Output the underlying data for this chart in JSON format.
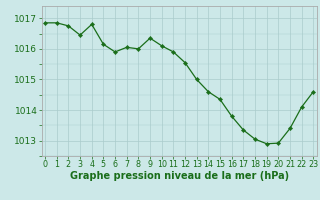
{
  "x": [
    0,
    1,
    2,
    3,
    4,
    5,
    6,
    7,
    8,
    9,
    10,
    11,
    12,
    13,
    14,
    15,
    16,
    17,
    18,
    19,
    20,
    21,
    22,
    23
  ],
  "y": [
    1016.85,
    1016.85,
    1016.75,
    1016.45,
    1016.8,
    1016.15,
    1015.9,
    1016.05,
    1016.0,
    1016.35,
    1016.1,
    1015.9,
    1015.55,
    1015.0,
    1014.6,
    1014.35,
    1013.8,
    1013.35,
    1013.05,
    1012.9,
    1012.92,
    1013.4,
    1014.1,
    1014.6
  ],
  "line_color": "#1a6e1a",
  "marker_color": "#1a6e1a",
  "bg_color": "#cce8e8",
  "grid_color": "#aacccc",
  "xlabel": "Graphe pression niveau de la mer (hPa)",
  "xlabel_color": "#1a6e1a",
  "tick_color": "#1a6e1a",
  "spine_color": "#aaaaaa",
  "ylim": [
    1012.5,
    1017.4
  ],
  "yticks": [
    1013,
    1014,
    1015,
    1016,
    1017
  ],
  "xticks": [
    0,
    1,
    2,
    3,
    4,
    5,
    6,
    7,
    8,
    9,
    10,
    11,
    12,
    13,
    14,
    15,
    16,
    17,
    18,
    19,
    20,
    21,
    22,
    23
  ],
  "font_size_xlabel": 7.0,
  "font_size_yticks": 6.5,
  "font_size_xticks": 5.8
}
